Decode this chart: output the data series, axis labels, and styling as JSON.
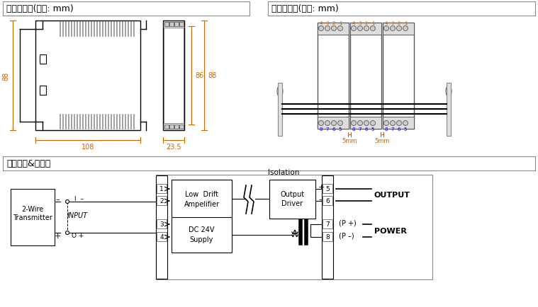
{
  "title1": "外形尺寸图(单位: mm)",
  "title2": "安装示意图(单位: mm)",
  "title3": "电路原理&接线图",
  "dim_88_left": "88",
  "dim_86": "86",
  "dim_88_right": "88",
  "dim_108": "108",
  "dim_235": "23.5",
  "dim_5mm": "5mm",
  "bg_color": "#ffffff",
  "dim_color": "#cc6600",
  "med_gray": "#999999",
  "orange_color": "#cc6600",
  "blue_color": "#0000bb",
  "header_border": "#888888"
}
